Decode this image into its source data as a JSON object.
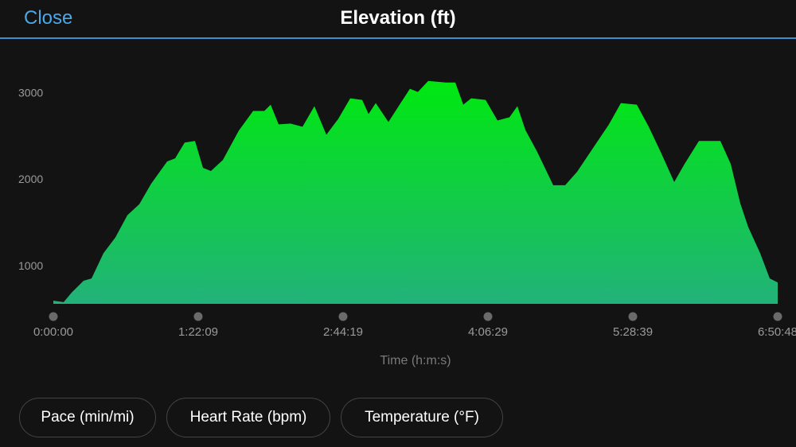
{
  "header": {
    "close": "Close",
    "title": "Elevation (ft)"
  },
  "chart_data": {
    "type": "area",
    "x_label": "Time (h:m:s)",
    "gradient": [
      "#00e810",
      "#22b27a"
    ],
    "x": [
      0,
      352,
      623,
      1029,
      1300,
      1706,
      2112,
      2519,
      2925,
      3331,
      3873,
      4144,
      4469,
      4821,
      5092,
      5363,
      5769,
      6311,
      6798,
      7178,
      7395,
      7665,
      8072,
      8478,
      8884,
      9290,
      9697,
      10103,
      10509,
      10726,
      10970,
      11403,
      11782,
      12134,
      12405,
      12757,
      13353,
      13678,
      13949,
      14220,
      14708,
      15114,
      15520,
      15791,
      16062,
      16468,
      17010,
      17416,
      17822,
      18364,
      18906,
      19312,
      19854,
      20260,
      20667,
      21127,
      21479,
      21967,
      22698,
      23050,
      23375,
      23646,
      24052,
      24377,
      24648
    ],
    "values": [
      607,
      589,
      700,
      836,
      863,
      1155,
      1338,
      1594,
      1721,
      1959,
      2215,
      2251,
      2434,
      2452,
      2142,
      2105,
      2233,
      2571,
      2799,
      2799,
      2872,
      2644,
      2653,
      2616,
      2854,
      2525,
      2708,
      2945,
      2927,
      2763,
      2890,
      2671,
      2872,
      3055,
      3018,
      3146,
      3128,
      3128,
      2872,
      2945,
      2927,
      2689,
      2726,
      2854,
      2580,
      2324,
      1941,
      1941,
      2096,
      2370,
      2644,
      2890,
      2872,
      2616,
      2324,
      1977,
      2187,
      2452,
      2452,
      2187,
      1731,
      1457,
      1155,
      863,
      817
    ],
    "xlim": [
      0,
      24648
    ],
    "xticks": [
      {
        "value": 0,
        "label": "0:00:00"
      },
      {
        "value": 4929,
        "label": "1:22:09"
      },
      {
        "value": 9859,
        "label": "2:44:19"
      },
      {
        "value": 14789,
        "label": "4:06:29"
      },
      {
        "value": 19719,
        "label": "5:28:39"
      },
      {
        "value": 24648,
        "label": "6:50:48"
      }
    ],
    "ylim": [
      570,
      3300
    ],
    "yticks": [
      1000,
      2000,
      3000
    ]
  },
  "buttons": [
    "Pace (min/mi)",
    "Heart Rate (bpm)",
    "Temperature (°F)"
  ]
}
